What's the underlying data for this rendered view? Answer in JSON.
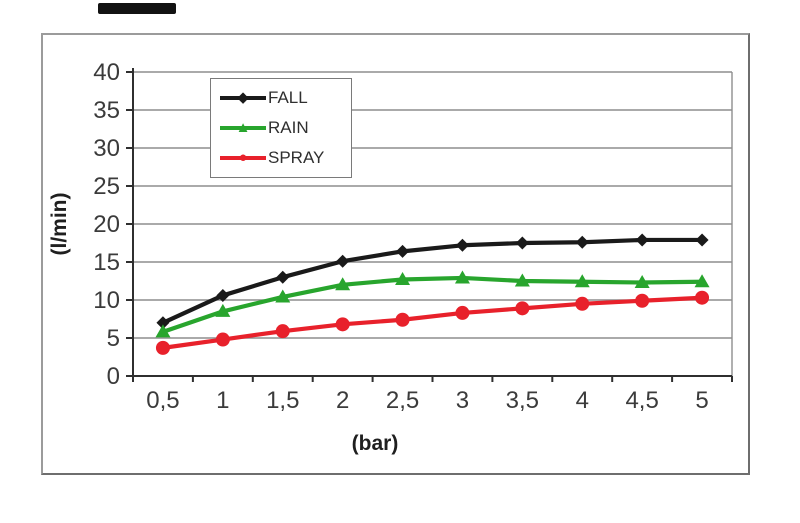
{
  "figure": {
    "background": "#ffffff",
    "frame_border_color": "#9b9b9b",
    "artifact_color": "#121212"
  },
  "chart_data": {
    "type": "line",
    "title": "",
    "xlabel": "(bar)",
    "ylabel": "(l/min)",
    "categories": [
      "0,5",
      "1",
      "1,5",
      "2",
      "2,5",
      "3",
      "3,5",
      "4",
      "4,5",
      "5"
    ],
    "x_values": [
      0.5,
      1,
      1.5,
      2,
      2.5,
      3,
      3.5,
      4,
      4.5,
      5
    ],
    "y_ticks": [
      0,
      5,
      10,
      15,
      20,
      25,
      30,
      35,
      40
    ],
    "ylim": [
      0,
      40
    ],
    "grid": "horizontal",
    "legend_position": "top-left-inside",
    "axis_text_color": "#3b3b3b",
    "grid_color": "#8e8e8e",
    "axis_line_color": "#2f2f2f",
    "series": [
      {
        "name": "FALL",
        "color": "#1a1a1a",
        "marker": "diamond",
        "values": [
          7.0,
          10.6,
          13.0,
          15.1,
          16.4,
          17.2,
          17.5,
          17.6,
          17.9,
          17.9
        ]
      },
      {
        "name": "RAIN",
        "color": "#28a52d",
        "marker": "triangle",
        "values": [
          5.8,
          8.5,
          10.4,
          12.0,
          12.7,
          12.9,
          12.5,
          12.4,
          12.3,
          12.4
        ]
      },
      {
        "name": "SPRAY",
        "color": "#e8212b",
        "marker": "circle",
        "values": [
          3.7,
          4.8,
          5.9,
          6.8,
          7.4,
          8.3,
          8.9,
          9.5,
          9.9,
          10.3
        ]
      }
    ]
  }
}
